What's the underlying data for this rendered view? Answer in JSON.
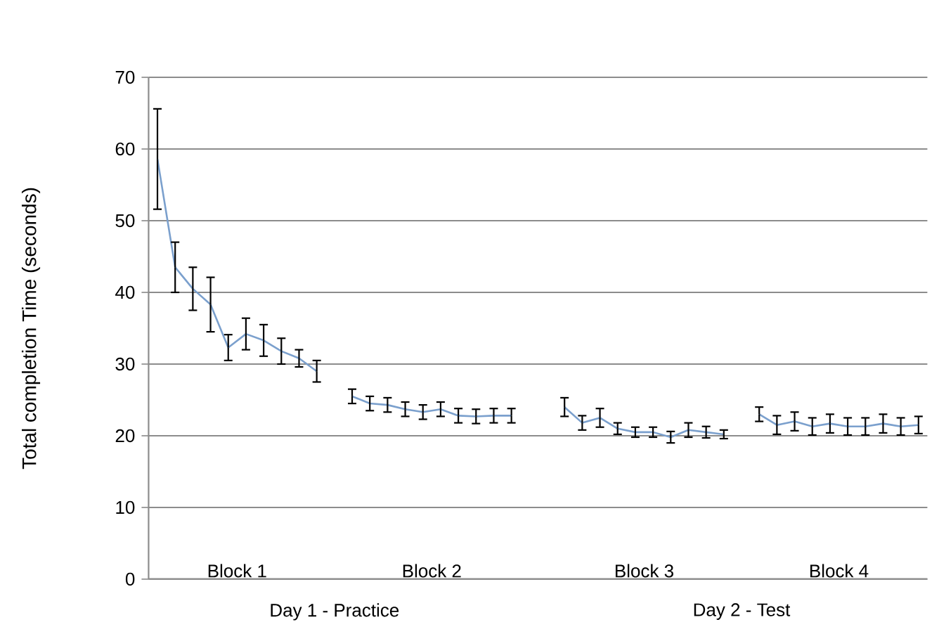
{
  "chart_data": {
    "type": "line",
    "ylabel": "Total completion Time (seconds)",
    "categories": [
      null,
      null,
      null,
      null,
      null,
      null,
      null,
      null,
      null,
      null,
      null,
      null,
      null,
      null,
      null,
      null,
      null,
      null,
      null,
      null,
      null,
      null,
      null,
      null,
      null,
      null,
      null,
      null,
      null,
      null,
      null,
      null,
      null,
      null,
      null,
      null,
      null,
      null,
      null,
      null,
      null,
      null,
      null,
      null
    ],
    "values": [
      58.6,
      43.5,
      40.5,
      38.3,
      32.3,
      34.2,
      33.3,
      31.8,
      30.8,
      29,
      null,
      25.5,
      24.5,
      24.3,
      23.7,
      23.3,
      23.7,
      22.8,
      22.7,
      22.8,
      22.8,
      null,
      null,
      24,
      21.8,
      22.5,
      21,
      20.5,
      20.5,
      19.8,
      20.8,
      20.5,
      20.2,
      null,
      23,
      21.5,
      22,
      21.3,
      21.7,
      21.3,
      21.3,
      21.7,
      21.3,
      21.5
    ],
    "errors": [
      7,
      3.5,
      3,
      3.8,
      1.8,
      2.2,
      2.2,
      1.8,
      1.2,
      1.5,
      null,
      1,
      1,
      1,
      1,
      1,
      1,
      1,
      1,
      1,
      1,
      null,
      null,
      1.3,
      1,
      1.3,
      0.8,
      0.7,
      0.7,
      0.8,
      1,
      0.8,
      0.6,
      null,
      1,
      1.3,
      1.3,
      1.2,
      1.3,
      1.2,
      1.2,
      1.3,
      1.2,
      1.2
    ],
    "color": "#7ba0cd",
    "ylim": [
      0,
      70
    ],
    "yticks": [
      0,
      10,
      20,
      30,
      40,
      50,
      60,
      70
    ],
    "grid": "y",
    "marker": "none",
    "line_style": "solid",
    "annotations": [
      "Block 1",
      "Block 2",
      "Block 3",
      "Block 4",
      "Day 1 - Practice",
      "Day 2 - Test"
    ]
  }
}
